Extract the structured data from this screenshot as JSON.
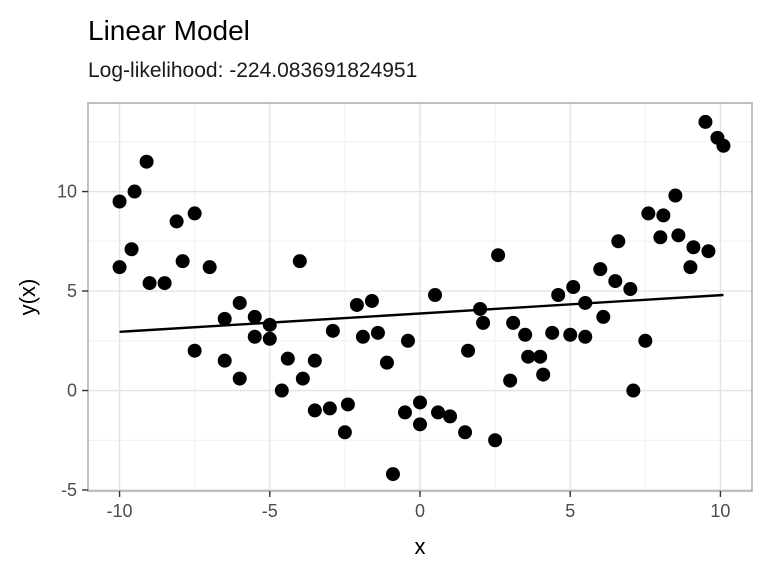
{
  "chart_data": {
    "type": "scatter",
    "title": "Linear Model",
    "subtitle": "Log-likelihood: -224.083691824951",
    "xlabel": "x",
    "ylabel": "y(x)",
    "xlim": [
      -11.05,
      11.05
    ],
    "ylim": [
      -5.05,
      14.45
    ],
    "x_ticks": [
      -10,
      -5,
      0,
      5,
      10
    ],
    "y_ticks": [
      -5,
      0,
      5,
      10
    ],
    "x_minor_ticks": [
      -7.5,
      -2.5,
      2.5,
      7.5
    ],
    "y_minor_ticks": [
      -2.5,
      2.5,
      7.5,
      12.5
    ],
    "grid": "major+minor",
    "legend_position": "none",
    "fit_line": {
      "x1": -10.0,
      "y1": 2.95,
      "x2": 10.1,
      "y2": 4.8
    },
    "points": [
      [
        -9.1,
        11.5
      ],
      [
        -9.5,
        10.0
      ],
      [
        -10.0,
        9.5
      ],
      [
        -8.1,
        8.5
      ],
      [
        -7.5,
        8.9
      ],
      [
        -9.6,
        7.1
      ],
      [
        -10.0,
        6.2
      ],
      [
        -7.9,
        6.5
      ],
      [
        -9.0,
        5.4
      ],
      [
        -8.5,
        5.4
      ],
      [
        -7.0,
        6.2
      ],
      [
        -6.0,
        4.4
      ],
      [
        -6.5,
        3.6
      ],
      [
        -7.5,
        2.0
      ],
      [
        -4.0,
        6.5
      ],
      [
        -5.5,
        3.7
      ],
      [
        -5.0,
        3.3
      ],
      [
        -5.5,
        2.7
      ],
      [
        -5.0,
        2.6
      ],
      [
        -2.9,
        3.0
      ],
      [
        -2.1,
        4.3
      ],
      [
        -1.6,
        4.5
      ],
      [
        -1.9,
        2.7
      ],
      [
        -1.4,
        2.9
      ],
      [
        -0.4,
        2.5
      ],
      [
        -6.5,
        1.5
      ],
      [
        -6.0,
        0.6
      ],
      [
        -4.4,
        1.6
      ],
      [
        -3.5,
        1.5
      ],
      [
        -1.1,
        1.4
      ],
      [
        -3.9,
        0.6
      ],
      [
        -4.6,
        0.0
      ],
      [
        -3.5,
        -1.0
      ],
      [
        -3.0,
        -0.9
      ],
      [
        -2.4,
        -0.7
      ],
      [
        -2.5,
        -2.1
      ],
      [
        -0.5,
        -1.1
      ],
      [
        -0.9,
        -4.2
      ],
      [
        0.0,
        -1.7
      ],
      [
        0.0,
        -0.6
      ],
      [
        0.6,
        -1.1
      ],
      [
        1.0,
        -1.3
      ],
      [
        1.5,
        -2.1
      ],
      [
        2.5,
        -2.5
      ],
      [
        3.0,
        0.5
      ],
      [
        4.1,
        0.8
      ],
      [
        2.6,
        6.8
      ],
      [
        0.5,
        4.8
      ],
      [
        2.0,
        4.1
      ],
      [
        2.1,
        3.4
      ],
      [
        3.1,
        3.4
      ],
      [
        3.5,
        2.8
      ],
      [
        4.6,
        4.8
      ],
      [
        5.1,
        5.2
      ],
      [
        4.4,
        2.9
      ],
      [
        5.0,
        2.8
      ],
      [
        1.6,
        2.0
      ],
      [
        3.6,
        1.7
      ],
      [
        4.0,
        1.7
      ],
      [
        5.5,
        4.4
      ],
      [
        6.0,
        6.1
      ],
      [
        6.5,
        5.5
      ],
      [
        7.0,
        5.1
      ],
      [
        6.1,
        3.7
      ],
      [
        5.5,
        2.7
      ],
      [
        7.5,
        2.5
      ],
      [
        6.6,
        7.5
      ],
      [
        8.0,
        7.7
      ],
      [
        8.6,
        7.8
      ],
      [
        9.1,
        7.2
      ],
      [
        9.6,
        7.0
      ],
      [
        9.0,
        6.2
      ],
      [
        9.5,
        13.5
      ],
      [
        9.9,
        12.7
      ],
      [
        10.1,
        12.3
      ],
      [
        8.5,
        9.8
      ],
      [
        7.6,
        8.9
      ],
      [
        8.1,
        8.8
      ],
      [
        7.1,
        0.0
      ]
    ],
    "colors": {
      "point": "#000000",
      "fit_line": "#000000",
      "grid_major": "#e3e3e3",
      "grid_minor": "#f1f1f1",
      "panel_border": "#b0b0b0",
      "panel_bg": "#ffffff",
      "tick": "#333333",
      "tick_label": "#4d4d4d"
    }
  }
}
